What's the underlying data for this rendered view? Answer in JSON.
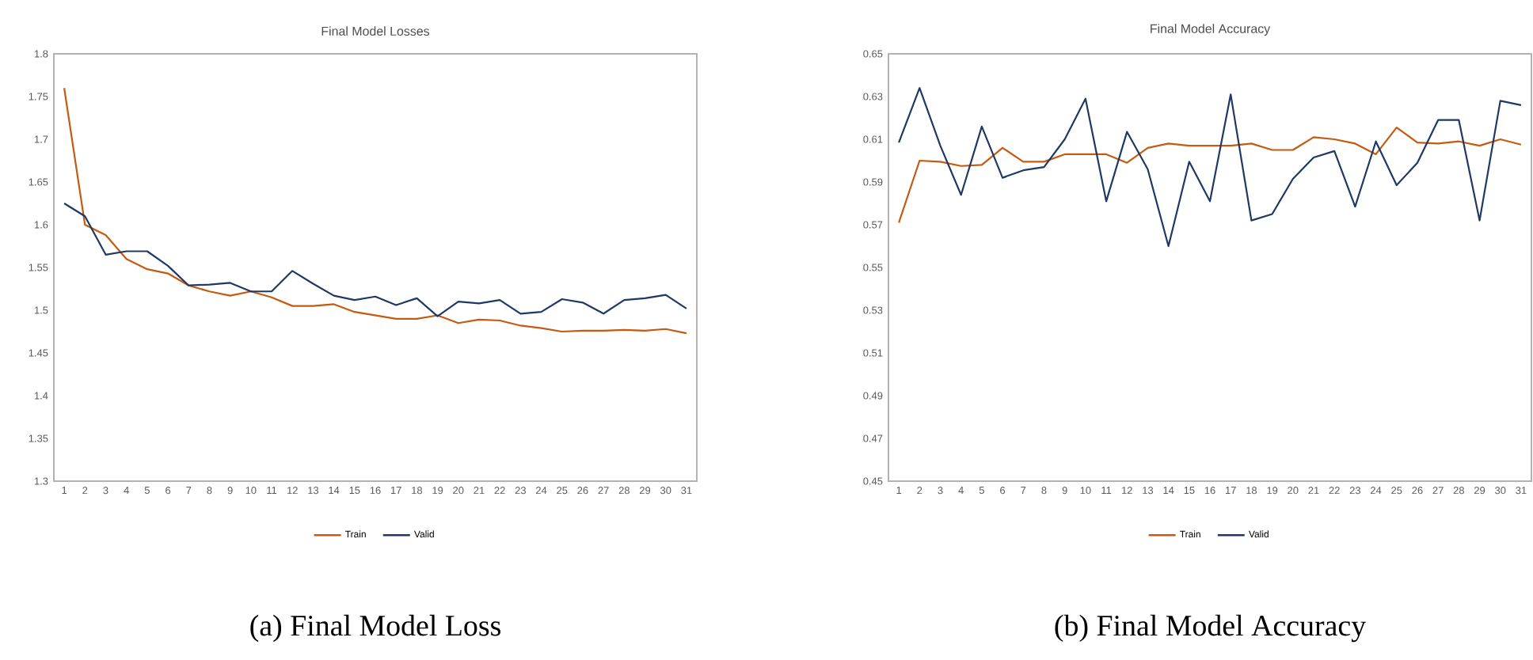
{
  "chart_data": [
    {
      "type": "line",
      "title": "Final Model Losses",
      "categories": [
        "1",
        "2",
        "3",
        "4",
        "5",
        "6",
        "7",
        "8",
        "9",
        "10",
        "11",
        "12",
        "13",
        "14",
        "15",
        "16",
        "17",
        "18",
        "19",
        "20",
        "21",
        "22",
        "23",
        "24",
        "25",
        "26",
        "27",
        "28",
        "29",
        "30",
        "31"
      ],
      "series": [
        {
          "name": "Train",
          "color": "#c55a11",
          "values": [
            1.76,
            1.6,
            1.588,
            1.56,
            1.548,
            1.543,
            1.529,
            1.522,
            1.517,
            1.522,
            1.515,
            1.505,
            1.505,
            1.507,
            1.498,
            1.494,
            1.49,
            1.49,
            1.494,
            1.485,
            1.489,
            1.488,
            1.482,
            1.479,
            1.475,
            1.476,
            1.476,
            1.477,
            1.476,
            1.478,
            1.473
          ]
        },
        {
          "name": "Valid",
          "color": "#203864",
          "values": [
            1.625,
            1.61,
            1.565,
            1.569,
            1.569,
            1.552,
            1.529,
            1.53,
            1.532,
            1.522,
            1.522,
            1.546,
            1.531,
            1.517,
            1.512,
            1.516,
            1.506,
            1.514,
            1.493,
            1.51,
            1.508,
            1.512,
            1.496,
            1.498,
            1.513,
            1.509,
            1.496,
            1.512,
            1.514,
            1.518,
            1.502
          ]
        }
      ],
      "ylim": [
        1.3,
        1.8
      ],
      "yticks": [
        1.3,
        1.35,
        1.4,
        1.45,
        1.5,
        1.55,
        1.6,
        1.65,
        1.7,
        1.75,
        1.8
      ],
      "grid": false,
      "legend": "bottom",
      "annotations": [
        "(a) Final Model Loss"
      ]
    },
    {
      "type": "line",
      "title": "Final Model Accuracy",
      "categories": [
        "1",
        "2",
        "3",
        "4",
        "5",
        "6",
        "7",
        "8",
        "9",
        "10",
        "11",
        "12",
        "13",
        "14",
        "15",
        "16",
        "17",
        "18",
        "19",
        "20",
        "21",
        "22",
        "23",
        "24",
        "25",
        "26",
        "27",
        "28",
        "29",
        "30",
        "31"
      ],
      "series": [
        {
          "name": "Train",
          "color": "#c55a11",
          "values": [
            0.571,
            0.6,
            0.5995,
            0.5975,
            0.598,
            0.606,
            0.5995,
            0.5995,
            0.603,
            0.603,
            0.603,
            0.599,
            0.606,
            0.608,
            0.607,
            0.607,
            0.607,
            0.608,
            0.605,
            0.605,
            0.611,
            0.61,
            0.608,
            0.603,
            0.6155,
            0.6085,
            0.608,
            0.609,
            0.607,
            0.61,
            0.6075
          ]
        },
        {
          "name": "Valid",
          "color": "#203864",
          "values": [
            0.6085,
            0.634,
            0.607,
            0.584,
            0.616,
            0.592,
            0.5955,
            0.597,
            0.61,
            0.629,
            0.581,
            0.6135,
            0.596,
            0.56,
            0.5995,
            0.581,
            0.631,
            0.572,
            0.575,
            0.5915,
            0.6015,
            0.6045,
            0.5785,
            0.609,
            0.5885,
            0.599,
            0.619,
            0.619,
            0.572,
            0.628,
            0.626
          ]
        }
      ],
      "ylim": [
        0.45,
        0.65
      ],
      "yticks": [
        0.45,
        0.47,
        0.49,
        0.51,
        0.53,
        0.55,
        0.57,
        0.59,
        0.61,
        0.63,
        0.65
      ],
      "grid": false,
      "legend": "bottom",
      "annotations": [
        "(b) Final Model Accuracy"
      ]
    }
  ]
}
